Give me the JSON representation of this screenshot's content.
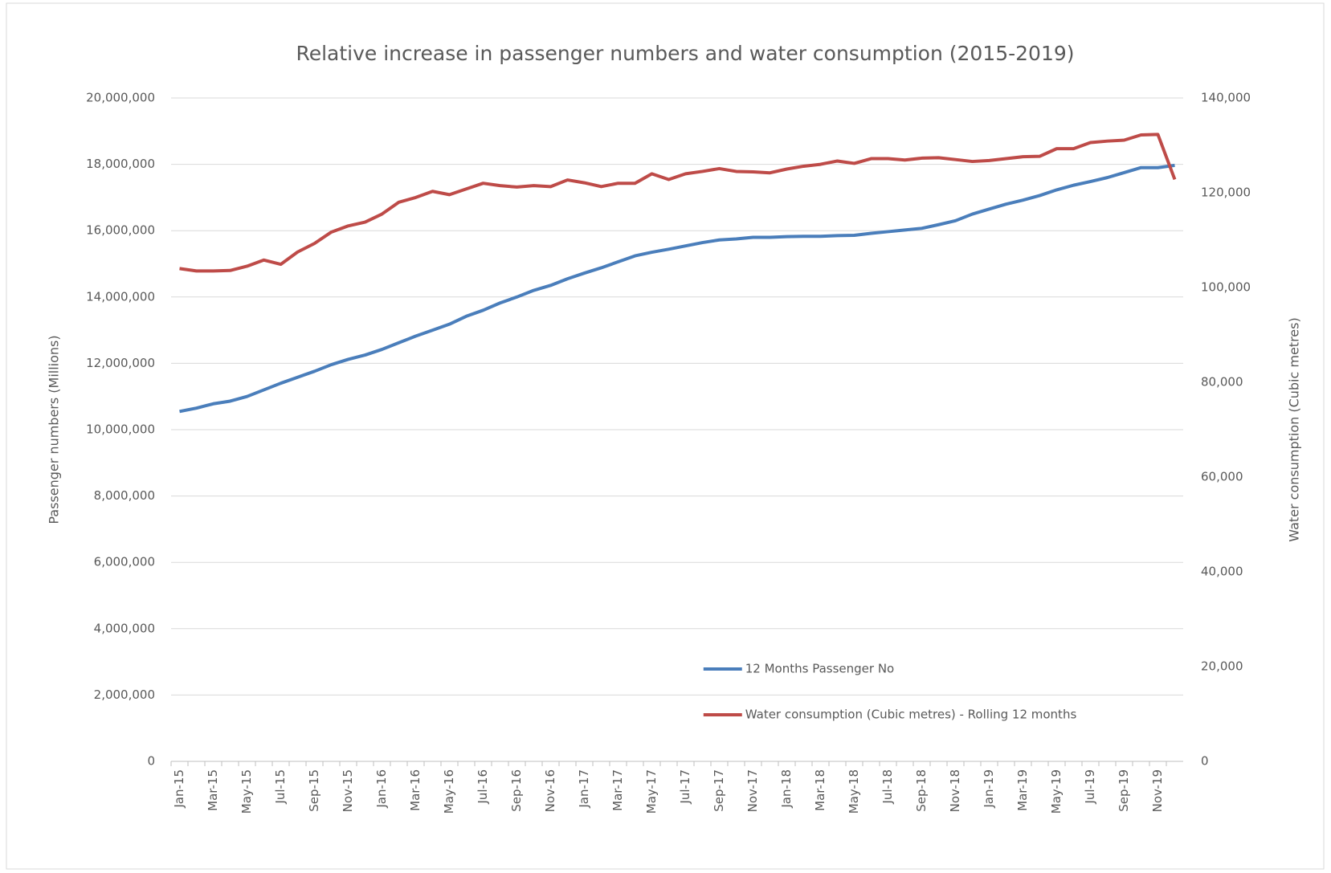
{
  "chart_data": {
    "type": "line",
    "title": "Relative increase in passenger numbers and water consumption (2015-2019)",
    "ylabel": "Passenger numbers (Millions)",
    "y2label": "Water consumption (Cubic metres)",
    "categories": [
      "Jan-15",
      null,
      "Mar-15",
      null,
      "May-15",
      null,
      "Jul-15",
      null,
      "Sep-15",
      null,
      "Nov-15",
      null,
      "Jan-16",
      null,
      "Mar-16",
      null,
      "May-16",
      null,
      "Jul-16",
      null,
      "Sep-16",
      null,
      "Nov-16",
      null,
      "Jan-17",
      null,
      "Mar-17",
      null,
      "May-17",
      null,
      "Jul-17",
      null,
      "Sep-17",
      null,
      "Nov-17",
      null,
      "Jan-18",
      null,
      "Mar-18",
      null,
      "May-18",
      null,
      "Jul-18",
      null,
      "Sep-18",
      null,
      "Nov-18",
      null,
      "Jan-19",
      null,
      "Mar-19",
      null,
      "May-19",
      null,
      "Jul-19",
      null,
      "Sep-19",
      null,
      "Nov-19",
      null
    ],
    "series": [
      {
        "name": "12 Months Passenger No",
        "color": "#4a7ebb",
        "axis": "y",
        "values": [
          10550000,
          10650000,
          10780000,
          10860000,
          11000000,
          11200000,
          11400000,
          11580000,
          11760000,
          11960000,
          12120000,
          12250000,
          12420000,
          12620000,
          12820000,
          13000000,
          13180000,
          13420000,
          13600000,
          13820000,
          14000000,
          14200000,
          14350000,
          14550000,
          14720000,
          14880000,
          15060000,
          15240000,
          15350000,
          15440000,
          15540000,
          15640000,
          15720000,
          15750000,
          15800000,
          15800000,
          15820000,
          15830000,
          15830000,
          15850000,
          15860000,
          15920000,
          15970000,
          16020000,
          16070000,
          16180000,
          16300000,
          16500000,
          16650000,
          16800000,
          16920000,
          17060000,
          17230000,
          17370000,
          17480000,
          17600000,
          17750000,
          17900000,
          17900000,
          17970000
        ]
      },
      {
        "name": "Water consumption (Cubic metres) - Rolling 12 months",
        "color": "#be4b48",
        "axis": "y2",
        "values": [
          104000,
          103500,
          103500,
          103600,
          104500,
          105800,
          104900,
          107500,
          109300,
          111700,
          113000,
          113800,
          115500,
          118000,
          119000,
          120300,
          119600,
          120800,
          122000,
          121500,
          121200,
          121500,
          121300,
          122700,
          122100,
          121300,
          122000,
          122000,
          124000,
          122800,
          124000,
          124500,
          125100,
          124500,
          124400,
          124200,
          125000,
          125600,
          126000,
          126700,
          126200,
          127200,
          127200,
          126900,
          127300,
          127400,
          127000,
          126600,
          126800,
          127200,
          127600,
          127700,
          129300,
          129300,
          130600,
          130900,
          131100,
          132200,
          132300,
          122800
        ]
      }
    ],
    "ylim": [
      0,
      20000000
    ],
    "yticks": [
      0,
      {
        "value": 2000000,
        "label": "2,000,000"
      },
      {
        "value": 4000000,
        "label": "4,000,000"
      },
      {
        "value": 6000000,
        "label": "6,000,000"
      },
      {
        "value": 8000000,
        "label": "8,000,000"
      },
      {
        "value": 10000000,
        "label": "10,000,000"
      },
      {
        "value": 12000000,
        "label": "12,000,000"
      },
      {
        "value": 14000000,
        "label": "14,000,000"
      },
      {
        "value": 16000000,
        "label": "16,000,000"
      },
      {
        "value": 18000000,
        "label": "18,000,000"
      },
      {
        "value": 20000000,
        "label": "20,000,000"
      }
    ],
    "y2lim": [
      0,
      140000
    ],
    "y2ticks": [
      0,
      {
        "value": 20000,
        "label": "20,000"
      },
      {
        "value": 40000,
        "label": "40,000"
      },
      {
        "value": 60000,
        "label": "60,000"
      },
      {
        "value": 80000,
        "label": "80,000"
      },
      {
        "value": 100000,
        "label": "100,000"
      },
      {
        "value": 120000,
        "label": "120,000"
      },
      {
        "value": 140000,
        "label": "140,000"
      }
    ],
    "grid": true,
    "legend": "bottom"
  }
}
